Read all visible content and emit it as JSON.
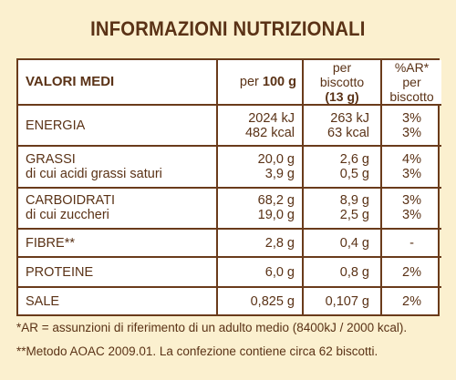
{
  "title": "INFORMAZIONI NUTRIZIONALI",
  "header": {
    "col0": "VALORI MEDI",
    "col1_prefix": "per",
    "col1_bold": "100 g",
    "col2_line1": "per biscotto",
    "col2_line2": "(13 g)",
    "col3_line1": "%AR*",
    "col3_line2": "per biscotto"
  },
  "rows": [
    {
      "label": [
        "ENERGIA"
      ],
      "per100": [
        "2024 kJ",
        "482 kcal"
      ],
      "perBiscotto": [
        "263 kJ",
        "63 kcal"
      ],
      "ar": [
        "3%",
        "3%"
      ]
    },
    {
      "label": [
        "GRASSI",
        "di cui acidi grassi saturi"
      ],
      "per100": [
        "20,0 g",
        "3,9 g"
      ],
      "perBiscotto": [
        "2,6 g",
        "0,5 g"
      ],
      "ar": [
        "4%",
        "3%"
      ]
    },
    {
      "label": [
        "CARBOIDRATI",
        "di cui zuccheri"
      ],
      "per100": [
        "68,2 g",
        "19,0 g"
      ],
      "perBiscotto": [
        "8,9 g",
        "2,5 g"
      ],
      "ar": [
        "3%",
        "3%"
      ]
    },
    {
      "label": [
        "FIBRE**"
      ],
      "per100": [
        "2,8 g"
      ],
      "perBiscotto": [
        "0,4 g"
      ],
      "ar": [
        "-"
      ]
    },
    {
      "label": [
        "PROTEINE"
      ],
      "per100": [
        "6,0 g"
      ],
      "perBiscotto": [
        "0,8 g"
      ],
      "ar": [
        "2%"
      ]
    },
    {
      "label": [
        "SALE"
      ],
      "per100": [
        "0,825 g"
      ],
      "perBiscotto": [
        "0,107 g"
      ],
      "ar": [
        "2%"
      ]
    }
  ],
  "footnotes": [
    "*AR = assunzioni di riferimento di un adulto medio (8400kJ / 2000 kcal).",
    "**Metodo AOAC 2009.01. La confezione contiene circa 62 biscotti."
  ],
  "colors": {
    "background": "#fbf0cf",
    "text": "#5a3216",
    "border": "#6a3b1b",
    "table": "#ffffff"
  }
}
